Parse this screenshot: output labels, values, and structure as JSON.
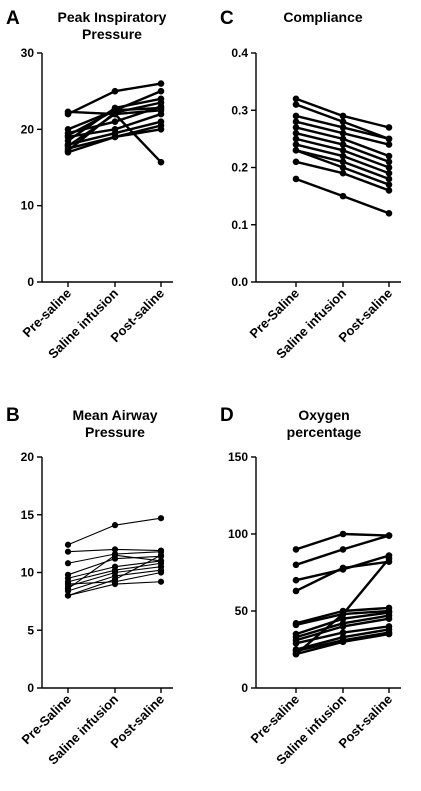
{
  "chart_data": [
    {
      "type": "line",
      "panel": "A",
      "title": "Peak Inspiratory Pressure",
      "title_lines": [
        "Peak Inspiratory",
        "Pressure"
      ],
      "categories": [
        "Pre-saline",
        "Saline infusion",
        "Post-saline"
      ],
      "ylim": [
        0,
        30
      ],
      "yticks": [
        0,
        10,
        20,
        30
      ],
      "grid": false,
      "line_style": "thick",
      "series": [
        {
          "values": [
            22.3,
            22.0,
            22.5
          ]
        },
        {
          "values": [
            22.0,
            25.0,
            26.0
          ]
        },
        {
          "values": [
            20.0,
            22.5,
            22.8
          ]
        },
        {
          "values": [
            19.5,
            21.0,
            23.0
          ]
        },
        {
          "values": [
            19.2,
            22.5,
            25.0
          ]
        },
        {
          "values": [
            19.0,
            20.0,
            22.0
          ]
        },
        {
          "values": [
            18.5,
            22.8,
            24.0
          ]
        },
        {
          "values": [
            18.0,
            19.5,
            21.0
          ]
        },
        {
          "values": [
            17.8,
            22.0,
            15.7
          ]
        },
        {
          "values": [
            17.5,
            19.0,
            20.5
          ]
        },
        {
          "values": [
            17.2,
            22.2,
            23.5
          ]
        },
        {
          "values": [
            17.0,
            19.0,
            20.0
          ]
        }
      ]
    },
    {
      "type": "line",
      "panel": "B",
      "title": "Mean Airway Pressure",
      "title_lines": [
        "Mean Airway",
        "Pressure"
      ],
      "categories": [
        "Pre-Saline",
        "Saline infusion",
        "Post-saline"
      ],
      "ylim": [
        0,
        20
      ],
      "yticks": [
        0,
        5,
        10,
        15,
        20
      ],
      "grid": false,
      "line_style": "thin",
      "series": [
        {
          "values": [
            12.4,
            14.1,
            14.7
          ]
        },
        {
          "values": [
            11.8,
            12.0,
            11.9
          ]
        },
        {
          "values": [
            10.8,
            11.6,
            11.8
          ]
        },
        {
          "values": [
            9.8,
            11.2,
            11.4
          ]
        },
        {
          "values": [
            9.5,
            10.5,
            11.0
          ]
        },
        {
          "values": [
            9.2,
            10.2,
            10.8
          ]
        },
        {
          "values": [
            8.8,
            10.0,
            10.5
          ]
        },
        {
          "values": [
            8.4,
            9.7,
            10.2
          ]
        },
        {
          "values": [
            8.0,
            9.4,
            11.5
          ]
        },
        {
          "values": [
            8.0,
            9.0,
            9.2
          ]
        },
        {
          "values": [
            9.0,
            9.2,
            10.0
          ]
        },
        {
          "values": [
            8.6,
            11.5,
            11.0
          ]
        }
      ]
    },
    {
      "type": "line",
      "panel": "C",
      "title": "Compliance",
      "title_lines": [
        "Compliance"
      ],
      "categories": [
        "Pre-Saline",
        "Saline infusion",
        "Post-saline"
      ],
      "ylim": [
        0.0,
        0.4
      ],
      "yticks": [
        0.0,
        0.1,
        0.2,
        0.3,
        0.4
      ],
      "grid": false,
      "line_style": "thick",
      "series": [
        {
          "values": [
            0.32,
            0.29,
            0.27
          ]
        },
        {
          "values": [
            0.31,
            0.28,
            0.25
          ]
        },
        {
          "values": [
            0.29,
            0.27,
            0.25
          ]
        },
        {
          "values": [
            0.28,
            0.26,
            0.24
          ]
        },
        {
          "values": [
            0.27,
            0.25,
            0.22
          ]
        },
        {
          "values": [
            0.26,
            0.24,
            0.21
          ]
        },
        {
          "values": [
            0.25,
            0.23,
            0.2
          ]
        },
        {
          "values": [
            0.24,
            0.22,
            0.19
          ]
        },
        {
          "values": [
            0.23,
            0.21,
            0.18
          ]
        },
        {
          "values": [
            0.23,
            0.2,
            0.17
          ]
        },
        {
          "values": [
            0.21,
            0.19,
            0.16
          ]
        },
        {
          "values": [
            0.18,
            0.15,
            0.12
          ]
        }
      ]
    },
    {
      "type": "line",
      "panel": "D",
      "title": "Oxygen percentage",
      "title_lines": [
        "Oxygen",
        "percentage"
      ],
      "categories": [
        "Pre-saline",
        "Saline infusion",
        "Post-saline"
      ],
      "ylim": [
        0,
        150
      ],
      "yticks": [
        0,
        50,
        100,
        150
      ],
      "grid": false,
      "line_style": "thick",
      "series": [
        {
          "values": [
            90,
            100,
            99
          ]
        },
        {
          "values": [
            80,
            90,
            99
          ]
        },
        {
          "values": [
            70,
            77,
            86
          ]
        },
        {
          "values": [
            63,
            78,
            82
          ]
        },
        {
          "values": [
            42,
            50,
            52
          ]
        },
        {
          "values": [
            41,
            48,
            50
          ]
        },
        {
          "values": [
            35,
            45,
            49
          ]
        },
        {
          "values": [
            33,
            42,
            47
          ]
        },
        {
          "values": [
            31,
            40,
            45
          ]
        },
        {
          "values": [
            29,
            36,
            40
          ]
        },
        {
          "values": [
            25,
            33,
            38
          ]
        },
        {
          "values": [
            24,
            31,
            36
          ]
        },
        {
          "values": [
            22,
            30,
            35
          ]
        },
        {
          "values": [
            22,
            48,
            84
          ]
        }
      ]
    }
  ]
}
